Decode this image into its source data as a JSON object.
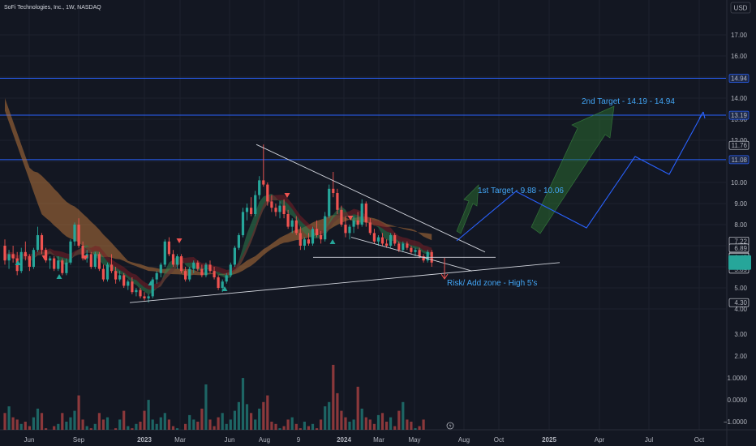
{
  "header": {
    "symbol_title": "SoFi Technologies, Inc., 1W, NASDAQ",
    "currency": "USD"
  },
  "colors": {
    "background": "#131722",
    "up": "#26a69a",
    "down": "#ef5350",
    "grid": "#1e222d",
    "hline": "#2962ff",
    "trendline": "#d1d4dc",
    "projection": "#2962ff",
    "target_label": "#42a5f5",
    "green_arrow": "#2e7d32",
    "ribbon_orange": "#b7723a",
    "ribbon_green": "#2e7d4f",
    "ribbon_red": "#7a1f27"
  },
  "chart_data": {
    "type": "candlestick",
    "timeframe": "1W",
    "x_ticks": [
      "Jun",
      "Sep",
      "2023",
      "Mar",
      "Jun",
      "Aug",
      "9",
      "2024",
      "Mar",
      "May",
      "Aug",
      "Oct",
      "2025",
      "Apr",
      "Jul",
      "Oct"
    ],
    "y_ticks": [
      "17.00",
      "16.00",
      "15.00",
      "14.00",
      "13.00",
      "12.00",
      "11.00",
      "10.00",
      "9.00",
      "8.00",
      "7.00",
      "6.00",
      "5.00",
      "4.00"
    ],
    "ylim": [
      3.5,
      17.8
    ],
    "volume_ticks": [
      "3.00",
      "2.00",
      "1.0000",
      "0.0000",
      "−1.0000"
    ],
    "price_labels": [
      {
        "text": "14.94",
        "value": 14.94,
        "style": "hline"
      },
      {
        "text": "13.19",
        "value": 13.19,
        "style": "hline"
      },
      {
        "text": "11.76",
        "value": 11.76,
        "style": "plain"
      },
      {
        "text": "11.08",
        "value": 11.08,
        "style": "hline"
      },
      {
        "text": "7.22",
        "value": 7.22,
        "style": "plain"
      },
      {
        "text": "6.89",
        "value": 6.89,
        "style": "plain"
      },
      {
        "text": "6.49",
        "value": 6.49,
        "style": "plain"
      },
      {
        "text": "6.45",
        "value": 6.45,
        "style": "plain"
      },
      {
        "text": "6.14",
        "value": 6.14,
        "style": "plain"
      },
      {
        "text": "5.89",
        "value": 5.89,
        "style": "plain"
      },
      {
        "text": "4.30",
        "value": 4.3,
        "style": "plain"
      }
    ],
    "current_price_value": 6.2,
    "horizontal_levels": [
      14.94,
      13.19,
      11.08
    ],
    "annotations": {
      "target1": "1st Target - 9.88 - 10.06",
      "target2": "2nd Target  - 14.19 - 14.94",
      "risk": "Risk/ Add zone - High 5's"
    },
    "candles": [
      [
        7.0,
        7.3,
        6.1,
        6.3
      ],
      [
        6.3,
        6.8,
        5.9,
        6.6
      ],
      [
        6.6,
        7.0,
        6.2,
        6.4
      ],
      [
        6.4,
        6.7,
        5.6,
        5.8
      ],
      [
        5.8,
        6.9,
        5.7,
        6.7
      ],
      [
        6.7,
        7.2,
        6.3,
        6.5
      ],
      [
        6.5,
        6.6,
        5.8,
        6.0
      ],
      [
        6.0,
        6.9,
        5.9,
        6.8
      ],
      [
        6.8,
        7.9,
        6.7,
        7.5
      ],
      [
        7.5,
        7.6,
        6.6,
        6.8
      ],
      [
        6.8,
        6.9,
        6.2,
        6.3
      ],
      [
        6.3,
        6.5,
        5.9,
        6.4
      ],
      [
        6.4,
        6.5,
        5.8,
        5.9
      ],
      [
        5.9,
        6.5,
        5.8,
        6.3
      ],
      [
        6.3,
        6.4,
        5.6,
        5.7
      ],
      [
        5.7,
        6.4,
        5.6,
        6.2
      ],
      [
        6.2,
        7.3,
        6.1,
        7.2
      ],
      [
        7.2,
        8.1,
        7.0,
        8.0
      ],
      [
        8.0,
        8.3,
        6.9,
        7.0
      ],
      [
        7.0,
        7.2,
        6.3,
        6.4
      ],
      [
        6.4,
        6.8,
        6.2,
        6.6
      ],
      [
        6.6,
        6.7,
        5.9,
        6.0
      ],
      [
        6.0,
        6.7,
        5.9,
        6.6
      ],
      [
        6.6,
        6.7,
        5.8,
        5.9
      ],
      [
        5.9,
        6.1,
        5.3,
        5.4
      ],
      [
        5.4,
        6.2,
        5.3,
        6.1
      ],
      [
        6.1,
        6.6,
        5.7,
        5.8
      ],
      [
        5.8,
        6.0,
        5.2,
        5.4
      ],
      [
        5.4,
        5.8,
        5.3,
        5.6
      ],
      [
        5.6,
        5.7,
        5.0,
        5.1
      ],
      [
        5.1,
        5.4,
        4.9,
        5.3
      ],
      [
        5.3,
        5.5,
        4.7,
        4.8
      ],
      [
        4.8,
        5.0,
        4.6,
        4.9
      ],
      [
        4.9,
        5.0,
        4.5,
        4.6
      ],
      [
        4.6,
        4.8,
        4.4,
        4.5
      ],
      [
        4.5,
        4.7,
        4.3,
        4.6
      ],
      [
        4.6,
        5.5,
        4.5,
        5.4
      ],
      [
        5.4,
        5.8,
        5.2,
        5.7
      ],
      [
        5.7,
        6.2,
        5.5,
        6.1
      ],
      [
        6.1,
        7.3,
        6.0,
        7.2
      ],
      [
        7.2,
        7.4,
        6.5,
        6.6
      ],
      [
        6.6,
        6.8,
        6.0,
        6.1
      ],
      [
        6.1,
        6.6,
        5.9,
        6.5
      ],
      [
        6.5,
        6.6,
        5.7,
        5.8
      ],
      [
        5.8,
        6.0,
        5.3,
        5.4
      ],
      [
        5.4,
        6.0,
        5.3,
        5.9
      ],
      [
        5.9,
        6.3,
        5.7,
        6.2
      ],
      [
        6.2,
        6.3,
        5.8,
        5.9
      ],
      [
        5.9,
        6.1,
        5.5,
        5.6
      ],
      [
        5.6,
        6.2,
        5.5,
        6.1
      ],
      [
        6.1,
        6.3,
        5.7,
        5.8
      ],
      [
        5.8,
        6.0,
        5.4,
        5.5
      ],
      [
        5.5,
        5.6,
        4.9,
        5.0
      ],
      [
        5.0,
        5.4,
        4.8,
        5.3
      ],
      [
        5.3,
        5.7,
        5.2,
        5.6
      ],
      [
        5.6,
        6.2,
        5.5,
        6.1
      ],
      [
        6.1,
        7.0,
        6.0,
        6.9
      ],
      [
        6.9,
        7.6,
        6.8,
        7.5
      ],
      [
        7.5,
        8.8,
        7.4,
        8.6
      ],
      [
        8.6,
        9.0,
        8.2,
        8.8
      ],
      [
        8.8,
        9.3,
        8.4,
        8.5
      ],
      [
        8.5,
        9.6,
        8.4,
        9.4
      ],
      [
        9.4,
        10.3,
        9.2,
        10.1
      ],
      [
        10.1,
        11.8,
        9.8,
        9.9
      ],
      [
        9.9,
        10.0,
        8.9,
        9.1
      ],
      [
        9.1,
        9.4,
        8.6,
        8.8
      ],
      [
        8.8,
        9.0,
        8.4,
        8.6
      ],
      [
        8.6,
        9.1,
        8.3,
        8.9
      ],
      [
        8.9,
        9.2,
        8.3,
        8.5
      ],
      [
        8.5,
        8.7,
        7.8,
        7.9
      ],
      [
        7.9,
        8.3,
        7.6,
        8.2
      ],
      [
        8.2,
        8.4,
        7.5,
        7.6
      ],
      [
        7.6,
        7.9,
        6.8,
        7.0
      ],
      [
        7.0,
        7.4,
        6.8,
        7.3
      ],
      [
        7.3,
        7.6,
        7.0,
        7.1
      ],
      [
        7.1,
        7.9,
        7.0,
        7.8
      ],
      [
        7.8,
        8.2,
        7.4,
        7.5
      ],
      [
        7.5,
        7.7,
        7.1,
        7.3
      ],
      [
        7.3,
        8.6,
        7.2,
        8.4
      ],
      [
        8.4,
        9.9,
        8.3,
        9.7
      ],
      [
        9.7,
        10.5,
        9.3,
        9.5
      ],
      [
        9.5,
        9.7,
        8.5,
        8.7
      ],
      [
        8.7,
        8.9,
        7.9,
        8.0
      ],
      [
        8.0,
        8.4,
        7.4,
        7.6
      ],
      [
        7.6,
        8.0,
        7.3,
        7.9
      ],
      [
        7.9,
        8.4,
        7.6,
        8.2
      ],
      [
        8.2,
        8.6,
        7.8,
        8.0
      ],
      [
        8.0,
        9.2,
        7.9,
        9.0
      ],
      [
        9.0,
        9.1,
        7.9,
        8.1
      ],
      [
        8.1,
        8.3,
        7.5,
        7.6
      ],
      [
        7.6,
        7.8,
        7.1,
        7.2
      ],
      [
        7.2,
        7.5,
        7.0,
        7.4
      ],
      [
        7.4,
        7.6,
        7.0,
        7.1
      ],
      [
        7.1,
        7.3,
        6.9,
        7.0
      ],
      [
        7.0,
        7.6,
        6.9,
        7.5
      ],
      [
        7.5,
        7.6,
        7.0,
        7.1
      ],
      [
        7.1,
        7.2,
        6.7,
        6.8
      ],
      [
        6.8,
        7.2,
        6.7,
        7.1
      ],
      [
        7.1,
        7.2,
        6.8,
        6.9
      ],
      [
        6.9,
        7.0,
        6.6,
        6.7
      ],
      [
        6.7,
        6.9,
        6.5,
        6.8
      ],
      [
        6.8,
        6.9,
        6.4,
        6.5
      ],
      [
        6.5,
        6.6,
        6.2,
        6.3
      ],
      [
        6.3,
        6.8,
        6.2,
        6.7
      ],
      [
        6.7,
        6.8,
        6.0,
        6.2
      ]
    ],
    "volume": [
      1.25,
      1.55,
      1.05,
      0.95,
      0.75,
      0.85,
      0.65,
      1.05,
      1.45,
      1.25,
      0.55,
      0.45,
      0.65,
      0.75,
      1.25,
      0.85,
      1.05,
      1.35,
      2.05,
      0.95,
      0.65,
      0.55,
      0.75,
      1.25,
      0.95,
      1.05,
      0.45,
      0.55,
      0.95,
      1.35,
      0.65,
      0.55,
      0.75,
      0.85,
      1.35,
      1.85,
      0.95,
      0.75,
      1.05,
      1.25,
      0.95,
      0.65,
      0.55,
      0.45,
      0.75,
      1.15,
      0.95,
      0.85,
      1.45,
      2.55,
      0.95,
      0.65,
      1.05,
      1.25,
      0.75,
      0.95,
      1.35,
      1.75,
      2.85,
      1.65,
      1.25,
      0.95,
      1.45,
      1.75,
      2.05,
      0.85,
      0.75,
      0.55,
      0.65,
      0.95,
      1.05,
      0.75,
      0.55,
      0.85,
      0.65,
      0.75,
      0.55,
      0.95,
      1.55,
      1.75,
      3.45,
      2.15,
      1.35,
      1.05,
      0.85,
      0.95,
      2.45,
      1.45,
      1.05,
      0.95,
      0.75,
      1.15,
      1.25,
      0.85,
      1.05,
      0.65,
      1.35,
      1.75,
      0.95,
      0.85,
      0.55,
      0.65,
      0.95,
      0.45,
      0.35
    ]
  }
}
